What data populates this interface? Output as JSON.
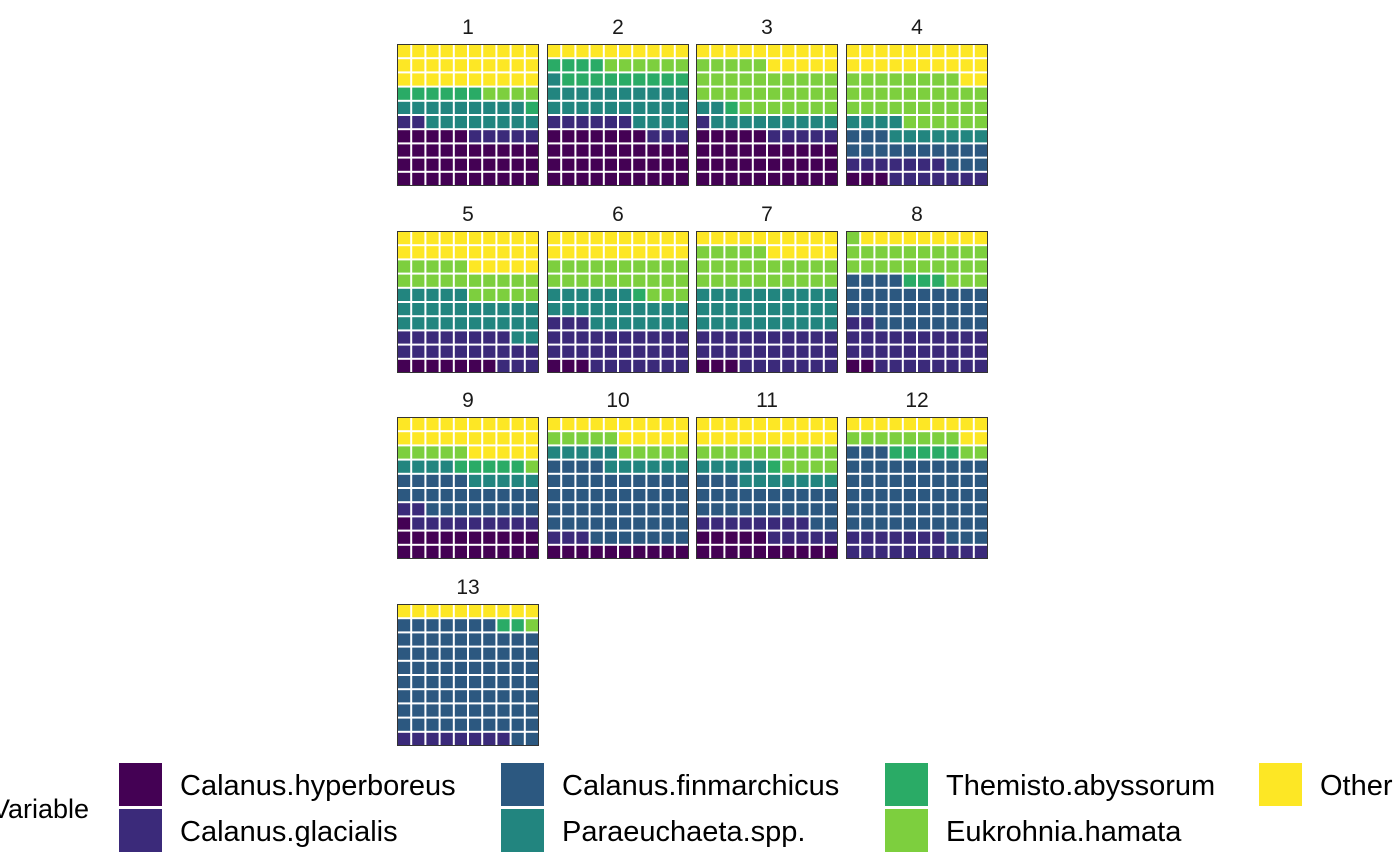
{
  "chart_data": {
    "type": "waffle",
    "panels": [
      "1",
      "2",
      "3",
      "4",
      "5",
      "6",
      "7",
      "8",
      "9",
      "10",
      "11",
      "12",
      "13"
    ],
    "grid": {
      "rows": 10,
      "cols": 10,
      "fill_order": "rows from bottom, left to right"
    },
    "series": [
      {
        "name": "Calanus.hyperboreus",
        "color": "#440154"
      },
      {
        "name": "Calanus.glacialis",
        "color": "#3b2a7a"
      },
      {
        "name": "Calanus.finmarchicus",
        "color": "#2c5880"
      },
      {
        "name": "Paraeuchaeta.spp.",
        "color": "#22857f"
      },
      {
        "name": "Themisto.abyssorum",
        "color": "#2aab66"
      },
      {
        "name": "Eukrohnia.hamata",
        "color": "#7dcf3e"
      },
      {
        "name": "Other",
        "color": "#fde725"
      }
    ],
    "counts": [
      [
        35,
        7,
        0,
        17,
        7,
        4,
        30
      ],
      [
        37,
        9,
        0,
        25,
        13,
        6,
        10
      ],
      [
        35,
        6,
        0,
        11,
        1,
        32,
        15
      ],
      [
        3,
        14,
        16,
        11,
        0,
        34,
        22
      ],
      [
        7,
        21,
        0,
        27,
        0,
        20,
        25
      ],
      [
        3,
        30,
        0,
        23,
        1,
        23,
        20
      ],
      [
        3,
        27,
        0,
        30,
        0,
        25,
        15
      ],
      [
        2,
        30,
        32,
        0,
        3,
        24,
        9
      ],
      [
        21,
        11,
        23,
        9,
        5,
        6,
        25
      ],
      [
        10,
        3,
        51,
        11,
        0,
        10,
        15
      ],
      [
        15,
        13,
        25,
        12,
        1,
        14,
        20
      ],
      [
        0,
        17,
        56,
        0,
        5,
        10,
        12
      ],
      [
        0,
        8,
        79,
        0,
        2,
        1,
        10
      ]
    ],
    "legend": {
      "title": "Variable",
      "position": "bottom"
    }
  }
}
